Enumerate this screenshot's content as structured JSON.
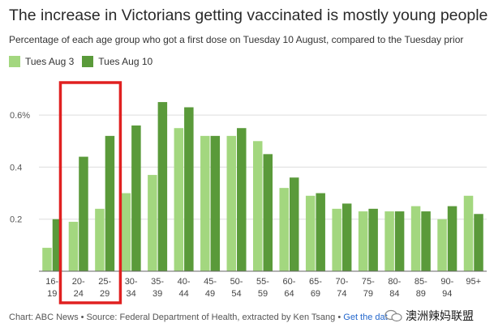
{
  "chart_data": {
    "type": "bar",
    "title": "The increase in Victorians getting vaccinated is mostly young people",
    "subtitle": "Percentage of each age group who got a first dose on Tuesday 10 August, compared to the Tuesday prior",
    "categories": [
      "16-\n19",
      "20-\n24",
      "25-\n29",
      "30-\n34",
      "35-\n39",
      "40-\n44",
      "45-\n49",
      "50-\n54",
      "55-\n59",
      "60-\n64",
      "65-\n69",
      "70-\n74",
      "75-\n79",
      "80-\n84",
      "85-\n89",
      "90-\n94",
      "95+"
    ],
    "series": [
      {
        "name": "Tues Aug 3",
        "color": "#a3d77f",
        "values": [
          0.09,
          0.19,
          0.24,
          0.3,
          0.37,
          0.55,
          0.52,
          0.52,
          0.5,
          0.32,
          0.29,
          0.24,
          0.23,
          0.23,
          0.25,
          0.2,
          0.29
        ]
      },
      {
        "name": "Tues Aug 10",
        "color": "#5a9a3a",
        "values": [
          0.2,
          0.44,
          0.52,
          0.56,
          0.65,
          0.63,
          0.52,
          0.55,
          0.45,
          0.36,
          0.3,
          0.26,
          0.24,
          0.23,
          0.23,
          0.25,
          0.22
        ]
      }
    ],
    "yticks": [
      "0.2",
      "0.4",
      "0.6%"
    ],
    "ytick_values": [
      0.2,
      0.4,
      0.6
    ],
    "ylim": [
      0,
      0.7
    ],
    "grid": true,
    "legend": "top-left",
    "highlight": {
      "categories": [
        "20-\n24",
        "25-\n29"
      ],
      "color": "#e02020"
    }
  },
  "footer": {
    "source": "Chart: ABC News • Source: Federal Department of Health, extracted by Ken Tsang •",
    "link": "Get the dat"
  },
  "watermark": {
    "text": "澳洲辣妈联盟"
  }
}
